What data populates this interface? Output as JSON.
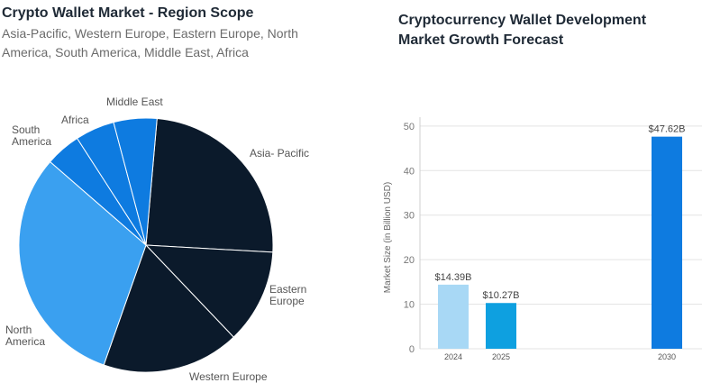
{
  "left_panel": {
    "title": "Crypto Wallet Market - Region Scope",
    "subtitle": "Asia-Pacific, Western Europe, Eastern Europe, North America, South America, Middle East, Africa"
  },
  "right_panel": {
    "title_line1": "Cryptocurrency Wallet Development",
    "title_line2": "Market Growth Forecast"
  },
  "chart_data": [
    {
      "type": "pie",
      "title": "Crypto Wallet Market - Region Scope",
      "slices": [
        {
          "label": "Asia- Pacific",
          "value": 24.5,
          "color": "#0b1a2b"
        },
        {
          "label": "Eastern Europe",
          "value": 12.0,
          "color": "#0b1a2b"
        },
        {
          "label": "Western Europe",
          "value": 17.5,
          "color": "#0b1a2b"
        },
        {
          "label": "North America",
          "value": 31.0,
          "color": "#3aa0f0"
        },
        {
          "label": "South America",
          "value": 4.5,
          "color": "#0e7be0"
        },
        {
          "label": "Africa",
          "value": 5.0,
          "color": "#0e7be0"
        },
        {
          "label": "Middle East",
          "value": 5.5,
          "color": "#0e7be0"
        }
      ],
      "start_angle_deg": 5,
      "legend": "labels-outside"
    },
    {
      "type": "bar",
      "title": "Cryptocurrency Wallet Development Market Growth Forecast",
      "categories": [
        "2024",
        "2025",
        "2030"
      ],
      "values": [
        14.39,
        10.27,
        47.62
      ],
      "value_labels": [
        "$14.39B",
        "$10.27B",
        "$47.62B"
      ],
      "colors": [
        "#a8d8f5",
        "#0ea0e0",
        "#0e7be0"
      ],
      "ylabel": "Market Size (in Billion USD)",
      "ylim": [
        0,
        52
      ],
      "yticks": [
        0,
        10,
        20,
        30,
        40,
        50
      ],
      "grid": true
    }
  ]
}
